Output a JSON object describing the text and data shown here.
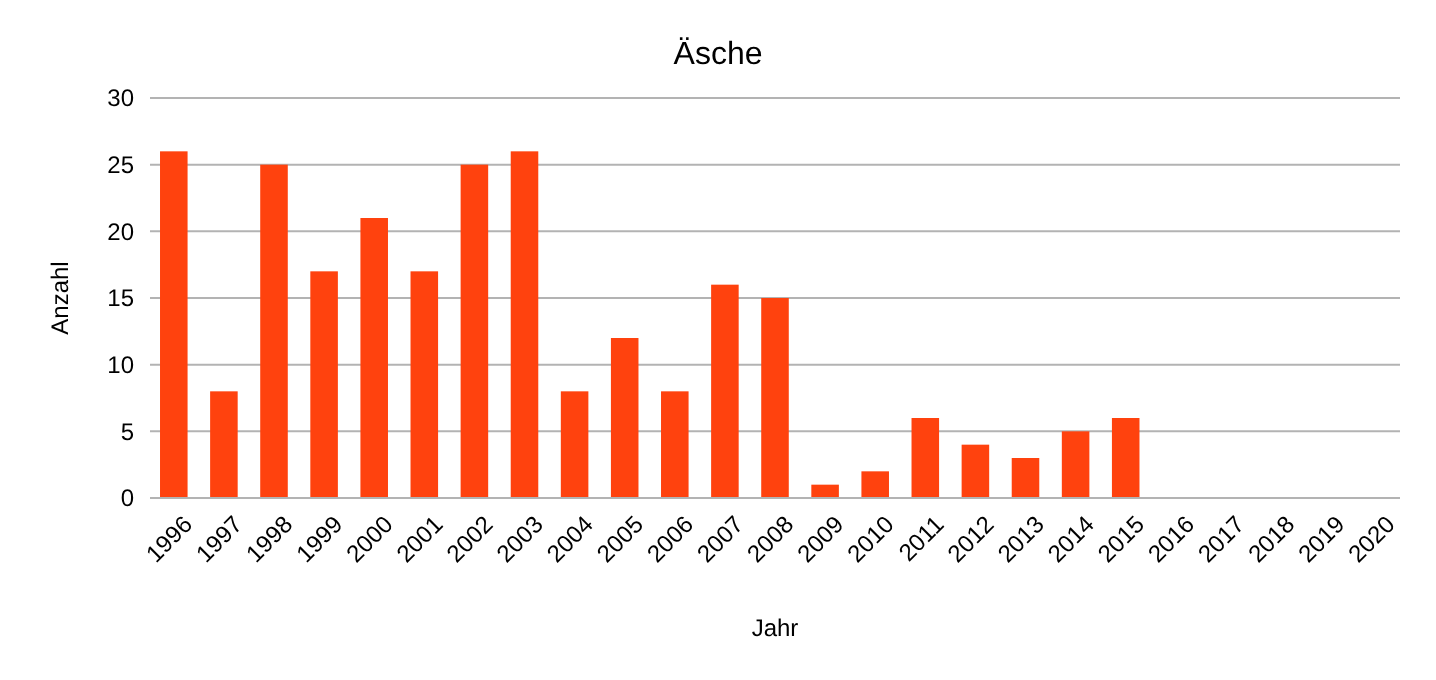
{
  "chart_data": {
    "type": "bar",
    "title": "Äsche",
    "xlabel": "Jahr",
    "ylabel": "Anzahl",
    "categories": [
      "1996",
      "1997",
      "1998",
      "1999",
      "2000",
      "2001",
      "2002",
      "2003",
      "2004",
      "2005",
      "2006",
      "2007",
      "2008",
      "2009",
      "2010",
      "2011",
      "2012",
      "2013",
      "2014",
      "2015",
      "2016",
      "2017",
      "2018",
      "2019",
      "2020"
    ],
    "values": [
      26,
      8,
      25,
      17,
      21,
      17,
      25,
      26,
      8,
      12,
      8,
      16,
      15,
      1,
      2,
      6,
      4,
      3,
      5,
      6,
      0,
      0,
      0,
      0,
      0
    ],
    "color": "#ff420e",
    "ylim": [
      0,
      30
    ],
    "yticks": [
      0,
      5,
      10,
      15,
      20,
      25,
      30
    ],
    "grid": "y"
  }
}
